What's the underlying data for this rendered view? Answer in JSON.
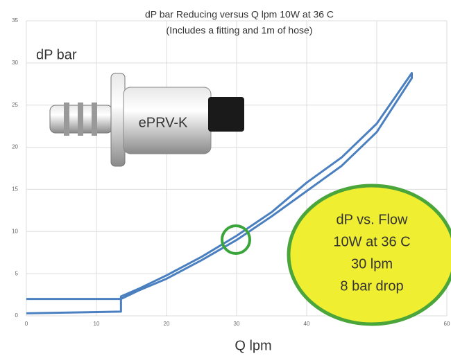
{
  "chart_data": {
    "type": "line",
    "title": "dP bar Reducing versus Q lpm 10W at 36 C",
    "subtitle": "(Includes a fitting and 1m of hose)",
    "y_label": "dP bar",
    "x_label": "Q lpm",
    "annotations": {
      "product": "ePRV-K",
      "callout": [
        "dP vs. Flow",
        "10W at 36 C",
        "30 lpm",
        "8 bar drop"
      ]
    },
    "x": [
      0,
      13.5,
      13.5,
      16,
      20,
      25,
      30,
      35,
      40,
      45,
      50,
      55,
      55,
      50,
      45,
      40,
      35,
      30,
      25,
      20,
      16,
      13.5,
      0
    ],
    "series": [
      {
        "color": "#4a7fc0",
        "values": [
          0.3,
          0.5,
          2.3,
          3.2,
          4.8,
          7.0,
          9.5,
          12.3,
          15.8,
          18.8,
          22.8,
          28.8,
          28.2,
          21.8,
          17.8,
          14.8,
          11.8,
          9.0,
          6.6,
          4.4,
          3.0,
          2.0,
          2.0
        ]
      }
    ],
    "xlim": [
      0,
      60
    ],
    "xticks": [
      0,
      10,
      20,
      30,
      40,
      50,
      60
    ],
    "ylim": [
      0,
      35
    ],
    "yticks": [
      0,
      5,
      10,
      15,
      20,
      25,
      30,
      35
    ],
    "grid": true
  }
}
